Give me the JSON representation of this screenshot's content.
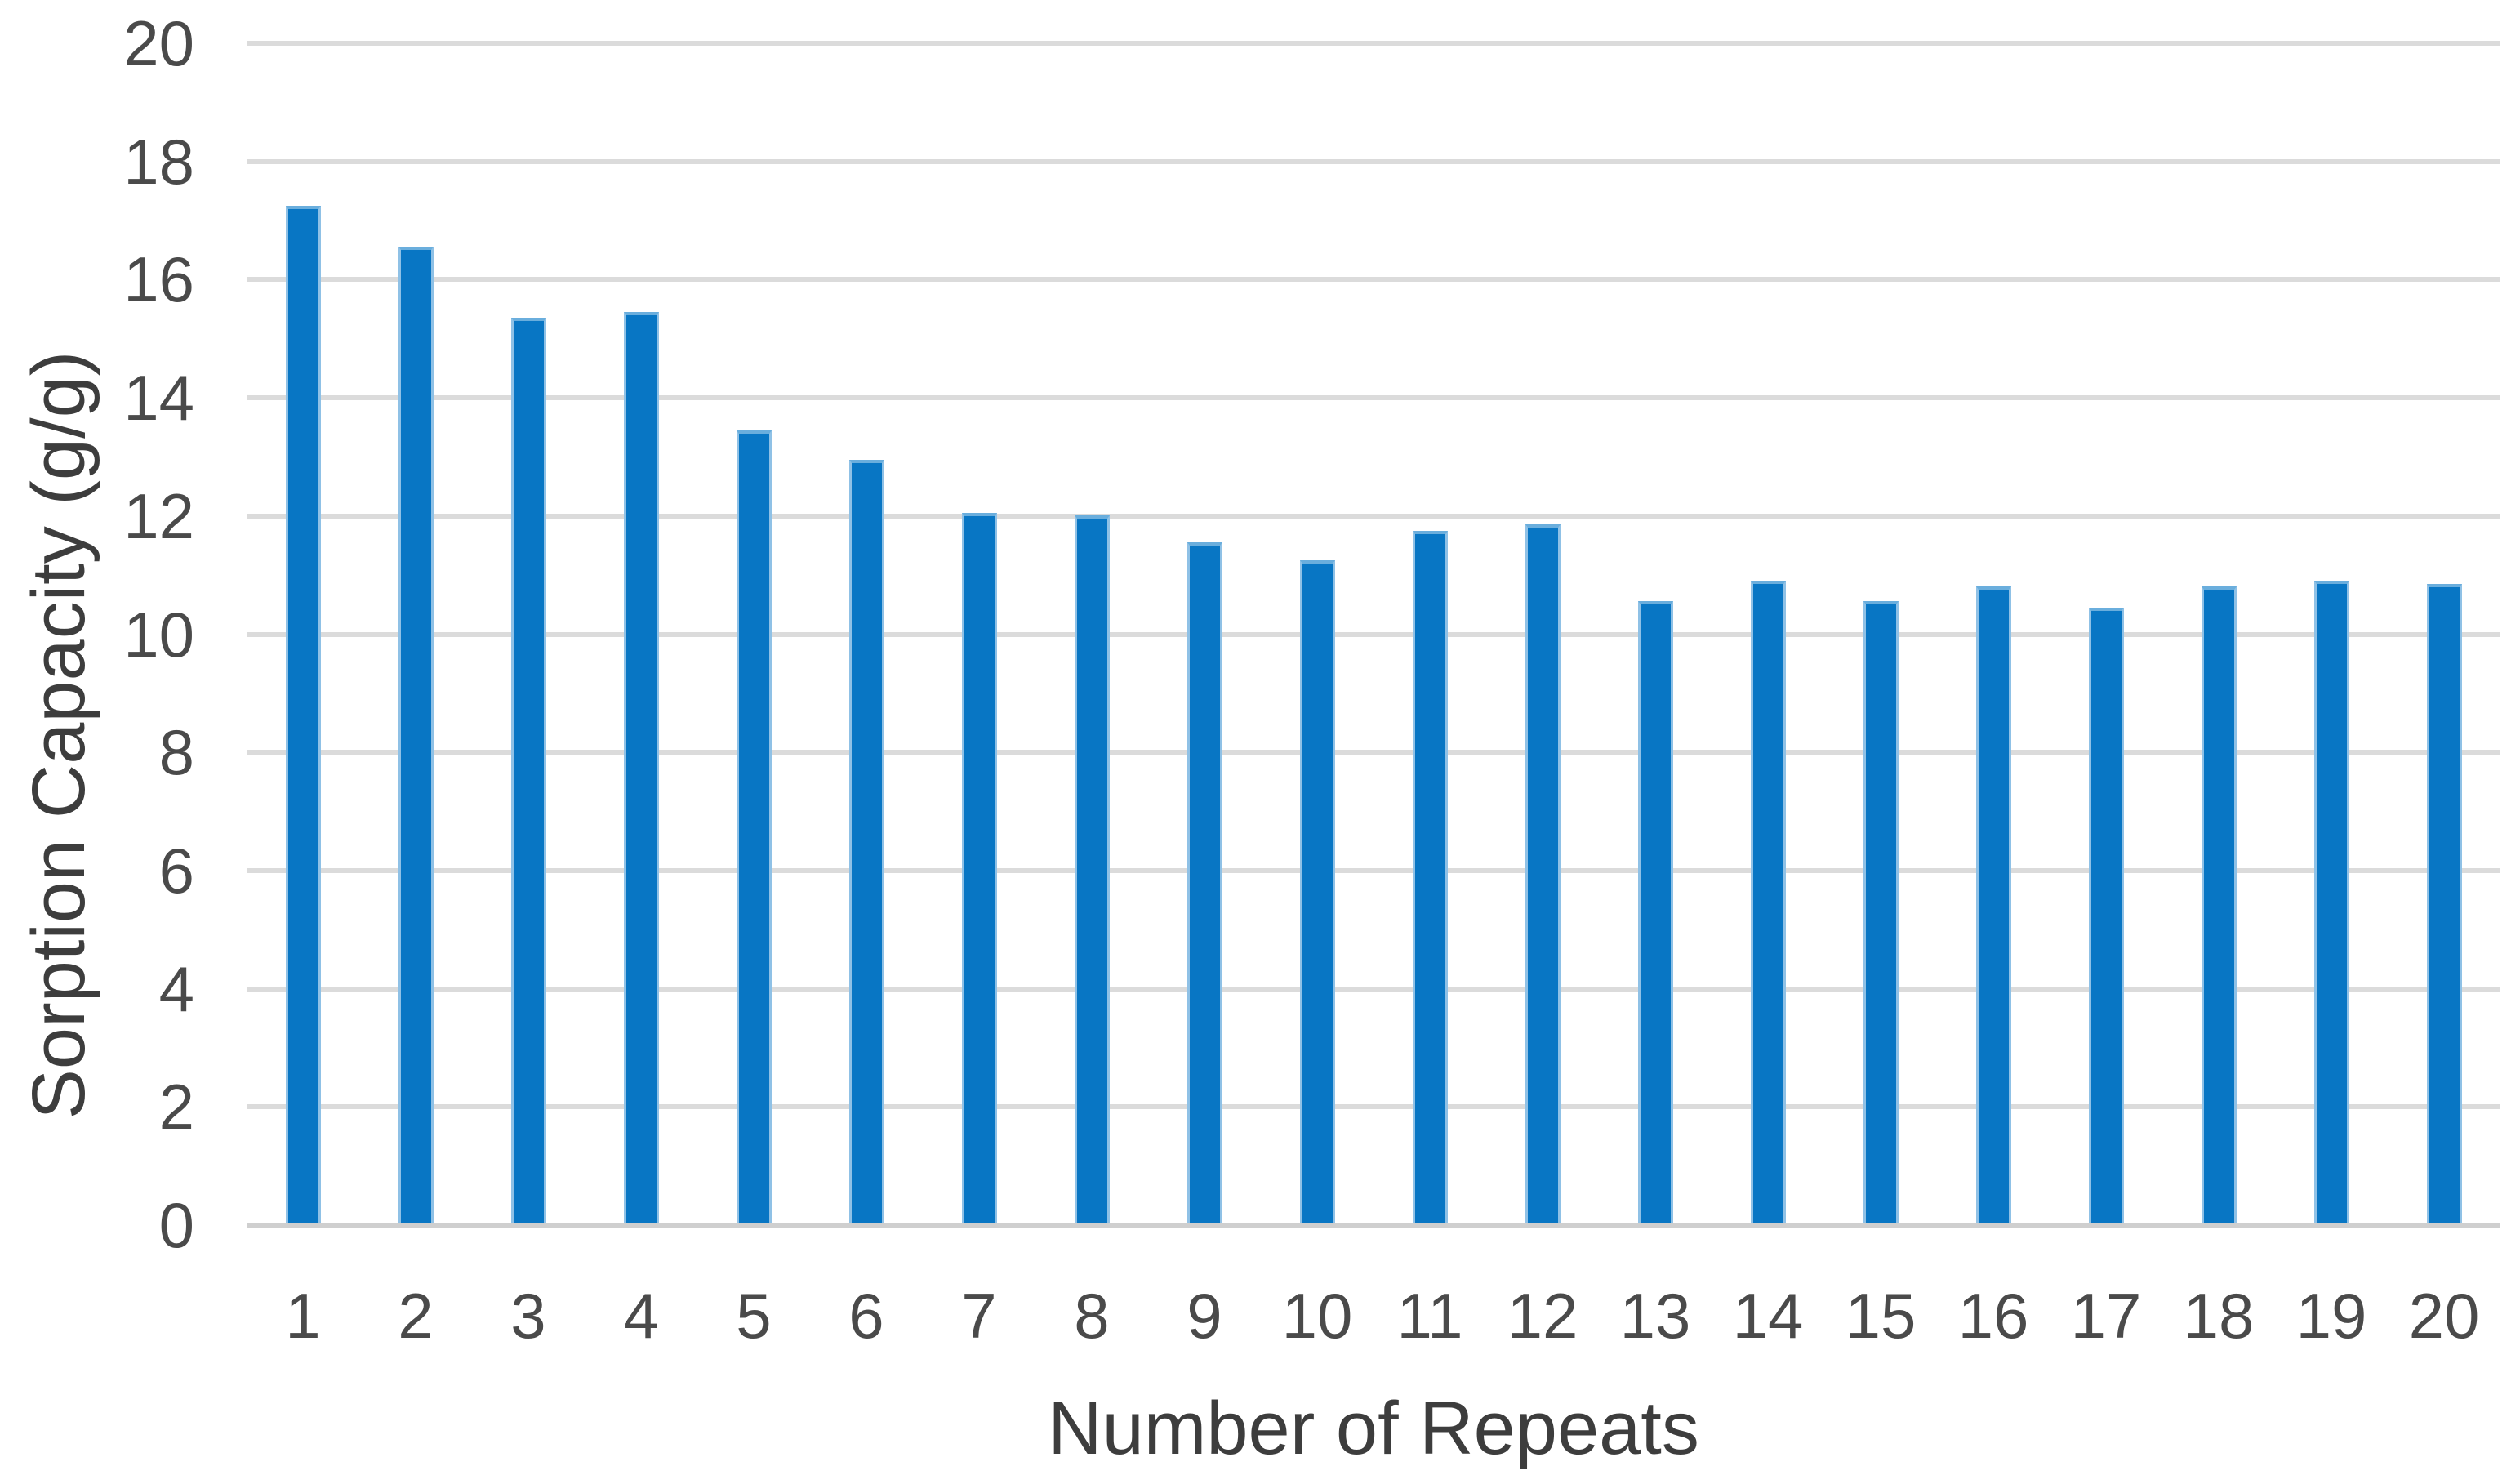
{
  "chart_data": {
    "type": "bar",
    "title": "",
    "xlabel": "Number of Repeats",
    "ylabel": "Sorption Capacity (g/g)",
    "categories": [
      "1",
      "2",
      "3",
      "4",
      "5",
      "6",
      "7",
      "8",
      "9",
      "10",
      "11",
      "12",
      "13",
      "14",
      "15",
      "16",
      "17",
      "18",
      "19",
      "20"
    ],
    "values": [
      17.2,
      16.5,
      15.3,
      15.4,
      13.4,
      12.9,
      12.0,
      11.95,
      11.5,
      11.2,
      11.7,
      11.8,
      10.5,
      10.85,
      10.5,
      10.75,
      10.4,
      10.75,
      10.85,
      10.8
    ],
    "series_name": "Sorption Capacity",
    "ylim": [
      0,
      20
    ],
    "yticks": [
      0,
      2,
      4,
      6,
      8,
      10,
      12,
      14,
      16,
      18,
      20
    ],
    "grid": "horizontal",
    "legend_position": "none",
    "colors": {
      "bar": "#0876c4",
      "bar_edge_highlight": "#8fc1e6",
      "gridline": "#dbdbdb",
      "axis_line": "#cfcfcf",
      "tick_label": "#4a4a4a",
      "axis_title": "#3d3d3d",
      "background": "#ffffff"
    }
  }
}
